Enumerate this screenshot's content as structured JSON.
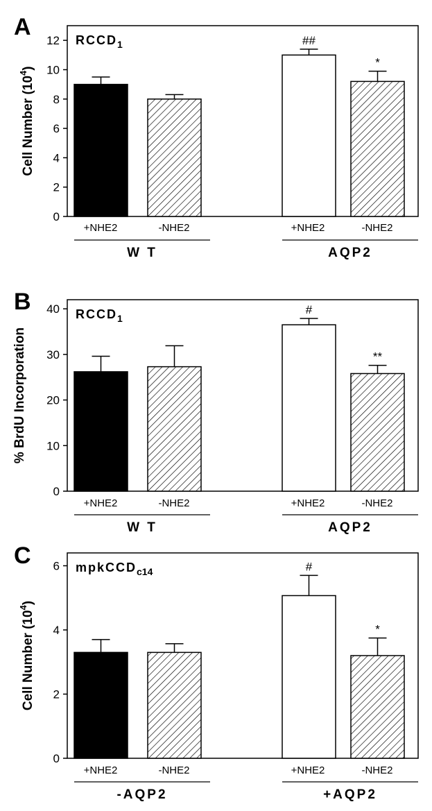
{
  "colors": {
    "solid": "#000000",
    "open": "#ffffff",
    "hatched": "#ffffff"
  },
  "chart_data": [
    {
      "type": "bar",
      "panel_letter": "A",
      "cell_line": "RCCD",
      "cell_line_sub": "1",
      "ylabel": "Cell Number (10",
      "ylabel_sup": "4",
      "ylabel_end": ")",
      "ylim": [
        0,
        13
      ],
      "yticks": [
        "0",
        "2",
        "4",
        "6",
        "8",
        "10",
        "12"
      ],
      "categories": [
        "+NHE2",
        "-NHE2",
        "+NHE2",
        "-NHE2"
      ],
      "groups": [
        {
          "label": "W T"
        },
        {
          "label": "AQP2"
        }
      ],
      "values": [
        9.0,
        8.0,
        11.0,
        9.2
      ],
      "errors": [
        0.5,
        0.3,
        0.4,
        0.7
      ],
      "fills": [
        "solid",
        "hatched",
        "open",
        "hatched"
      ],
      "annotations": [
        "",
        "",
        "##",
        "*"
      ]
    },
    {
      "type": "bar",
      "panel_letter": "B",
      "cell_line": "RCCD",
      "cell_line_sub": "1",
      "ylabel": "% BrdU Incorporation",
      "ylabel_sup": "",
      "ylabel_end": "",
      "ylim": [
        0,
        42
      ],
      "yticks": [
        "0",
        "10",
        "20",
        "30",
        "40"
      ],
      "categories": [
        "+NHE2",
        "-NHE2",
        "+NHE2",
        "-NHE2"
      ],
      "groups": [
        {
          "label": "W T"
        },
        {
          "label": "AQP2"
        }
      ],
      "values": [
        26.2,
        27.3,
        36.5,
        25.8
      ],
      "errors": [
        3.4,
        4.6,
        1.4,
        1.8
      ],
      "fills": [
        "solid",
        "hatched",
        "open",
        "hatched"
      ],
      "annotations": [
        "",
        "",
        "#",
        "**"
      ]
    },
    {
      "type": "bar",
      "panel_letter": "C",
      "cell_line": "mpkCCD",
      "cell_line_sub": "c14",
      "ylabel": "Cell Number (10",
      "ylabel_sup": "4",
      "ylabel_end": ")",
      "ylim": [
        0,
        6.4
      ],
      "yticks": [
        "0",
        "2",
        "4",
        "6"
      ],
      "categories": [
        "+NHE2",
        "-NHE2",
        "+NHE2",
        "-NHE2"
      ],
      "groups": [
        {
          "label": "-AQP2"
        },
        {
          "label": "+AQP2"
        }
      ],
      "values": [
        3.3,
        3.3,
        5.07,
        3.2
      ],
      "errors": [
        0.4,
        0.27,
        0.63,
        0.55
      ],
      "fills": [
        "solid",
        "hatched",
        "open",
        "hatched"
      ],
      "annotations": [
        "",
        "",
        "#",
        "*"
      ]
    }
  ]
}
